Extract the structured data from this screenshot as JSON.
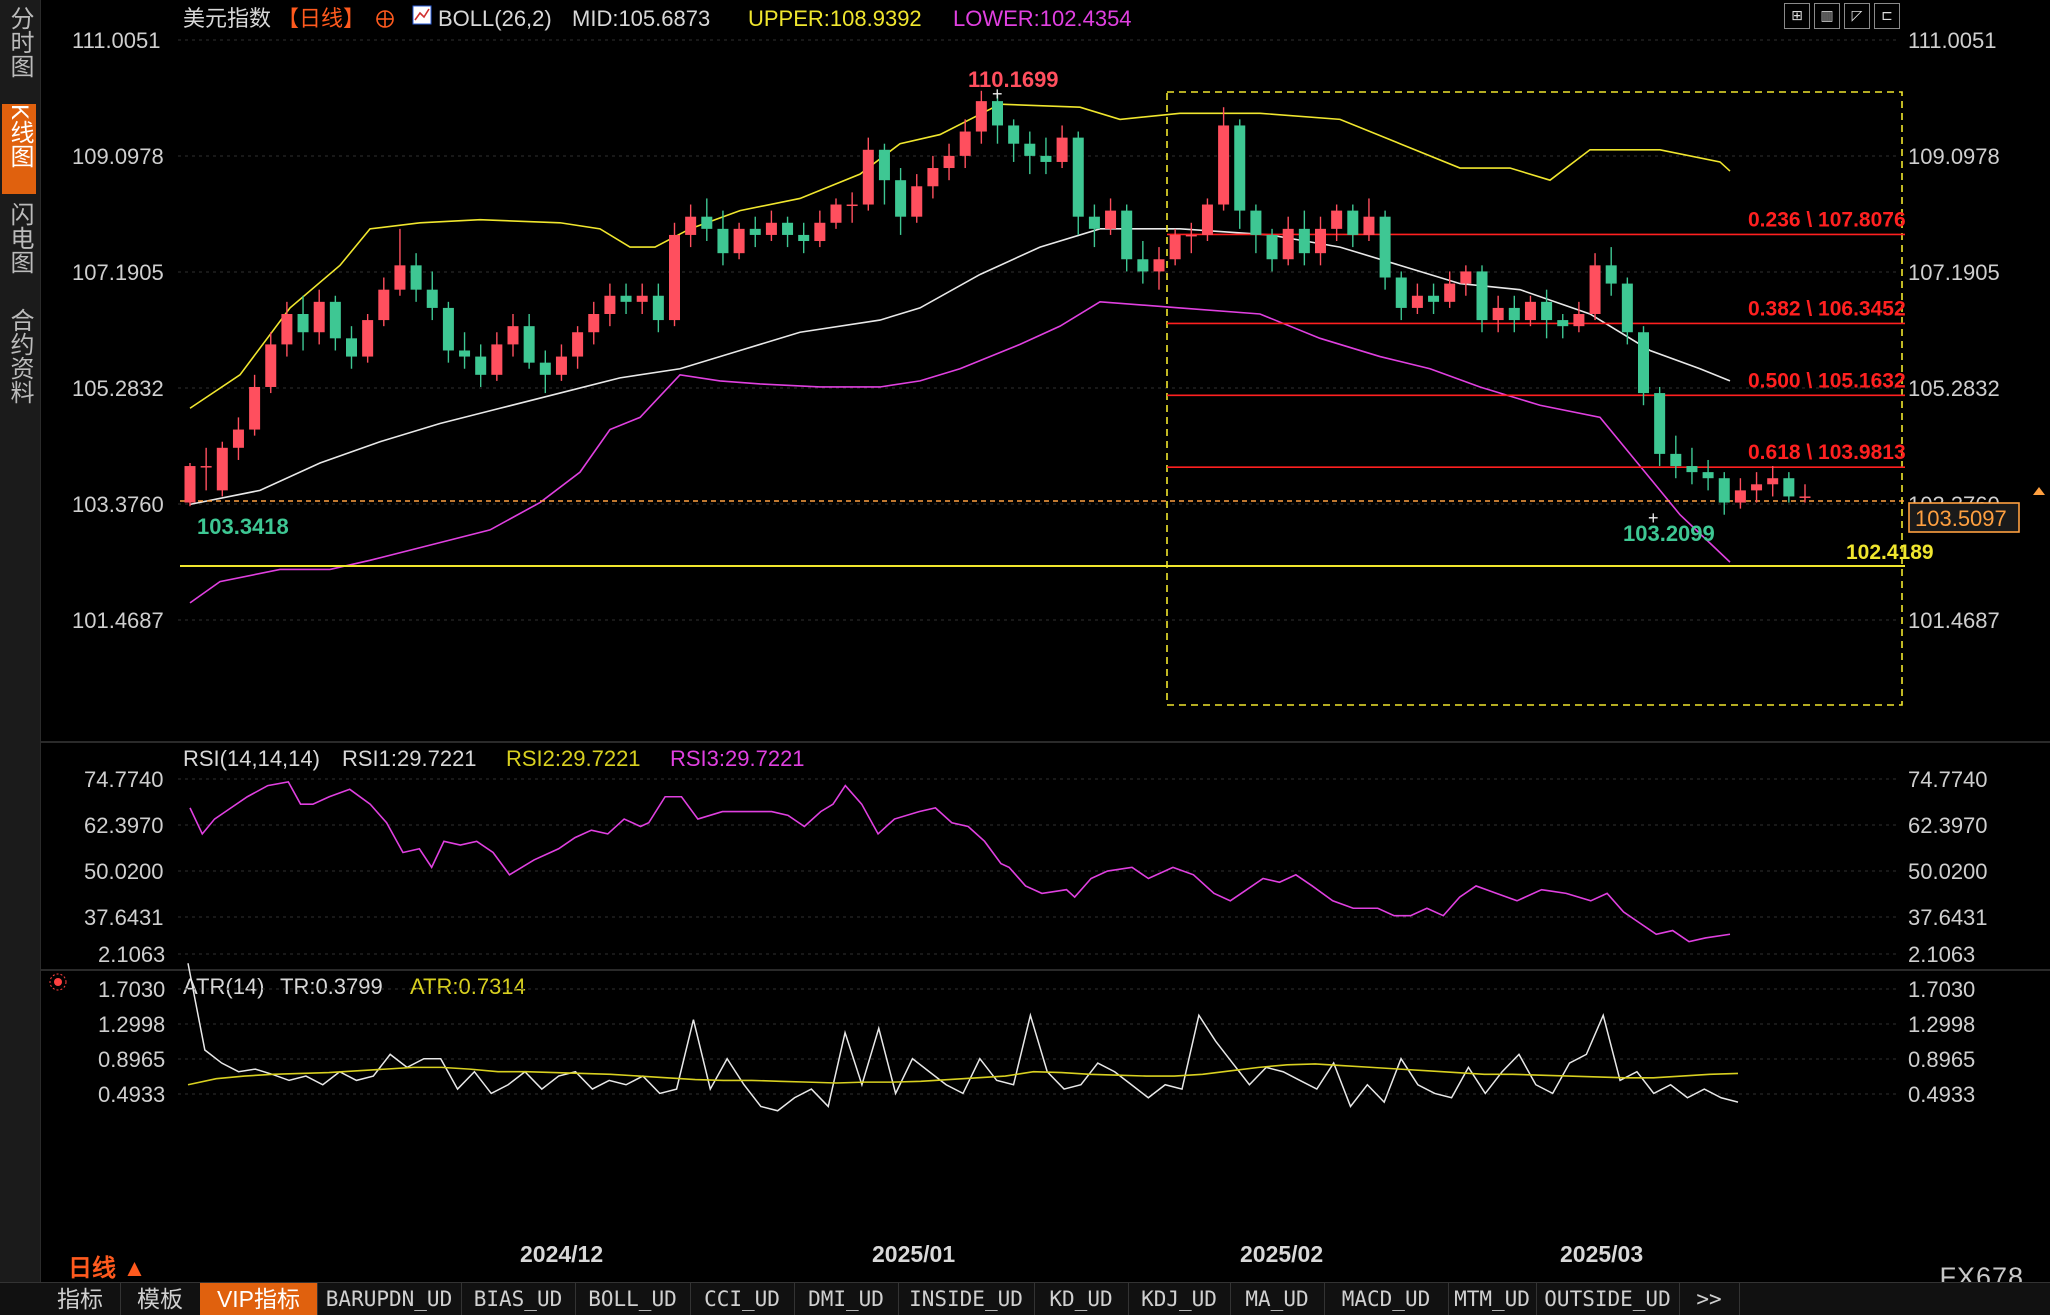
{
  "sidebar": {
    "items": [
      {
        "label": "分时图",
        "active": false
      },
      {
        "label": "K线图",
        "active": true
      },
      {
        "label": "闪电图",
        "active": false
      },
      {
        "label": "合约资料",
        "active": false
      }
    ]
  },
  "header": {
    "title": "美元指数",
    "period": "【日线】",
    "boll": "BOLL(26,2)",
    "mid": "MID:105.6873",
    "upper": "UPPER:108.9392",
    "lower": "LOWER:102.4354"
  },
  "toolbar_icons": [
    "grid-icon",
    "bar-chart-icon",
    "line-chart-icon",
    "candle-chart-icon"
  ],
  "main_axis": {
    "labels": [
      "111.0051",
      "109.0978",
      "107.1905",
      "105.2832",
      "103.3760",
      "101.4687"
    ],
    "current_price": "103.5097"
  },
  "annotations": {
    "high": "110.1699",
    "low_left": "103.3418",
    "low_right": "103.2099",
    "support": "102.4189",
    "fib": [
      {
        "label": "0.236 \\ 107.8076",
        "value": 107.8076
      },
      {
        "label": "0.382 \\ 106.3452",
        "value": 106.3452
      },
      {
        "label": "0.500 \\ 105.1632",
        "value": 105.1632
      },
      {
        "label": "0.618 \\ 103.9813",
        "value": 103.9813
      }
    ]
  },
  "rsi": {
    "title": "RSI(14,14,14)",
    "rsi1": "RSI1:29.7221",
    "rsi2": "RSI2:29.7221",
    "rsi3": "RSI3:29.7221",
    "labels": [
      "74.7740",
      "62.3970",
      "50.0200",
      "37.6431"
    ]
  },
  "atr": {
    "title": "ATR(14)",
    "tr": "TR:0.3799",
    "atr": "ATR:0.7314",
    "labels": [
      "2.1063",
      "1.7030",
      "1.2998",
      "0.8965",
      "0.4933"
    ]
  },
  "x_axis": {
    "dates": [
      "2024/12",
      "2025/01",
      "2025/02",
      "2025/03"
    ]
  },
  "period_label": "日线 ▲",
  "watermark": "FX678",
  "bottom_tabs": [
    "指标",
    "模板",
    "VIP指标",
    "BARUPDN_UD",
    "BIAS_UD",
    "BOLL_UD",
    "CCI_UD",
    "DMI_UD",
    "INSIDE_UD",
    "KD_UD",
    "KDJ_UD",
    "MA_UD",
    "MACD_UD",
    "MTM_UD",
    "OUTSIDE_UD",
    ">>"
  ],
  "active_bottom_tab": "VIP指标",
  "colors": {
    "up": "#ff4f5e",
    "down": "#3ec793",
    "boll_mid": "#e8e8e8",
    "boll_upper": "#f0e62e",
    "boll_lower": "#e040e0",
    "fib": "#ff2020",
    "support": "#f0e62e",
    "price_line": "#ffa040",
    "rsi": "#e040e0",
    "atr_tr": "#e8e8e8",
    "atr_avg": "#d8d020",
    "accent": "#e0610e"
  }
}
